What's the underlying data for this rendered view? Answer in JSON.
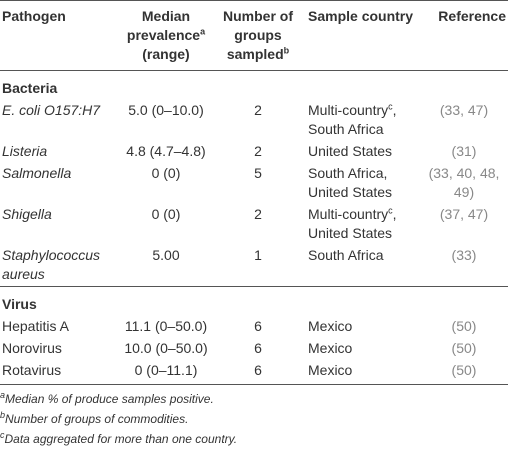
{
  "table": {
    "headers": [
      {
        "text": "Pathogen"
      },
      {
        "text": "Median prevalence",
        "sup": "a",
        "after": "(range)"
      },
      {
        "text": "Number of groups sampled",
        "sup": "b"
      },
      {
        "text": "Sample country"
      },
      {
        "text": "Reference"
      }
    ],
    "sections": [
      {
        "title": "Bacteria",
        "italic_names": true,
        "rows": [
          [
            "E. coli O157:H7",
            "5.0 (0–10.0)",
            2,
            {
              "main": "Multi-country",
              "sup": "c",
              "after": ", South Africa"
            },
            "(33, 47)"
          ],
          [
            "Listeria",
            "4.8 (4.7–4.8)",
            2,
            "United States",
            "(31)"
          ],
          [
            "Salmonella",
            "0 (0)",
            5,
            "South Africa, United States",
            "(33, 40, 48, 49)"
          ],
          [
            "Shigella",
            "0 (0)",
            2,
            {
              "main": "Multi-country",
              "sup": "c",
              "after": ", United States"
            },
            "(37, 47)"
          ],
          [
            "Staphylococcus aureus",
            "5.00",
            1,
            "South Africa",
            "(33)"
          ]
        ]
      },
      {
        "title": "Virus",
        "italic_names": false,
        "rows": [
          [
            "Hepatitis A",
            "11.1 (0–50.0)",
            6,
            "Mexico",
            "(50)"
          ],
          [
            "Norovirus",
            "10.0 (0–50.0)",
            6,
            "Mexico",
            "(50)"
          ],
          [
            "Rotavirus",
            "0 (0–11.1)",
            6,
            "Mexico",
            "(50)"
          ]
        ]
      }
    ],
    "footnotes": [
      {
        "mark": "a",
        "text": "Median % of produce samples positive."
      },
      {
        "mark": "b",
        "text": "Number of groups of commodities."
      },
      {
        "mark": "c",
        "text": "Data aggregated for more than one country."
      }
    ]
  }
}
